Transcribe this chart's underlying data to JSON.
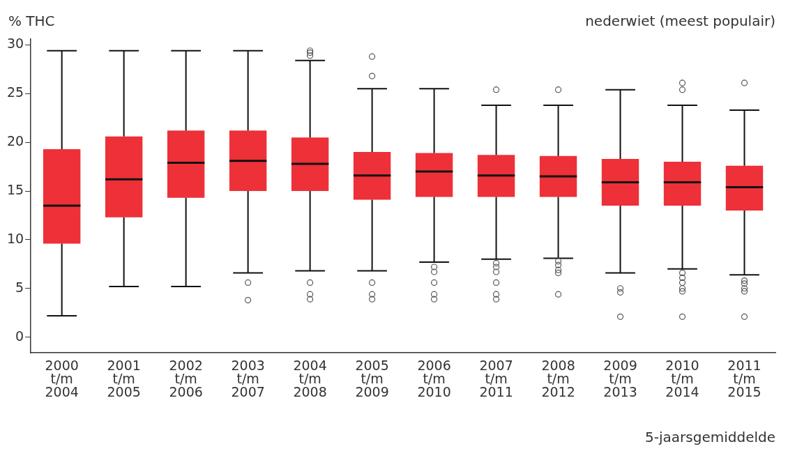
{
  "chart_data": {
    "type": "box",
    "title": "nederwiet (meest populair)",
    "ylabel": "% THC",
    "xlabel": "5-jaarsgemiddelde",
    "categories": [
      "2000 t/m 2004",
      "2001 t/m 2005",
      "2002 t/m 2006",
      "2003 t/m 2007",
      "2004 t/m 2008",
      "2005 t/m 2009",
      "2006 t/m 2010",
      "2007 t/m 2011",
      "2008 t/m 2012",
      "2009 t/m 2013",
      "2010 t/m 2014",
      "2011 t/m 2015"
    ],
    "series": [
      {
        "color": "#ee3038",
        "boxes": [
          {
            "low": 2.2,
            "q1": 9.6,
            "median": 13.5,
            "q3": 19.3,
            "high": 29.4
          },
          {
            "low": 5.2,
            "q1": 12.3,
            "median": 16.2,
            "q3": 20.6,
            "high": 29.4
          },
          {
            "low": 5.2,
            "q1": 14.3,
            "median": 17.9,
            "q3": 21.2,
            "high": 29.4
          },
          {
            "low": 6.6,
            "q1": 15.0,
            "median": 18.1,
            "q3": 21.2,
            "high": 29.4,
            "outliers": [
              5.6,
              3.8
            ]
          },
          {
            "low": 6.8,
            "q1": 15.0,
            "median": 17.8,
            "q3": 20.5,
            "high": 28.4,
            "outliers": [
              29.4,
              29.2,
              28.9,
              5.6,
              4.4,
              3.9
            ]
          },
          {
            "low": 6.8,
            "q1": 14.1,
            "median": 16.6,
            "q3": 19.0,
            "high": 25.5,
            "outliers": [
              28.8,
              26.8,
              5.6,
              4.4,
              3.9
            ]
          },
          {
            "low": 7.7,
            "q1": 14.4,
            "median": 17.0,
            "q3": 18.9,
            "high": 25.5,
            "outliers": [
              7.2,
              6.7,
              5.6,
              4.4,
              3.9
            ]
          },
          {
            "low": 8.0,
            "q1": 14.4,
            "median": 16.6,
            "q3": 18.7,
            "high": 23.8,
            "outliers": [
              25.4,
              7.6,
              7.2,
              6.7,
              5.6,
              4.4,
              3.9
            ]
          },
          {
            "low": 8.1,
            "q1": 14.4,
            "median": 16.5,
            "q3": 18.6,
            "high": 23.8,
            "outliers": [
              25.4,
              7.8,
              7.4,
              6.9,
              6.6,
              4.4
            ]
          },
          {
            "low": 6.6,
            "q1": 13.5,
            "median": 15.9,
            "q3": 18.3,
            "high": 25.4,
            "outliers": [
              5.0,
              4.6,
              2.1
            ]
          },
          {
            "low": 7.0,
            "q1": 13.5,
            "median": 15.9,
            "q3": 18.0,
            "high": 23.8,
            "outliers": [
              26.1,
              25.4,
              6.6,
              6.1,
              5.6,
              5.0,
              4.7,
              2.1
            ]
          },
          {
            "low": 6.4,
            "q1": 13.0,
            "median": 15.4,
            "q3": 17.6,
            "high": 23.3,
            "outliers": [
              26.1,
              5.8,
              5.5,
              5.0,
              4.7,
              2.1
            ]
          }
        ]
      }
    ],
    "ylim": [
      -1.6,
      30.6
    ],
    "yticks": [
      0,
      5,
      10,
      15,
      20,
      25,
      30
    ],
    "grid": false,
    "legend": false
  }
}
